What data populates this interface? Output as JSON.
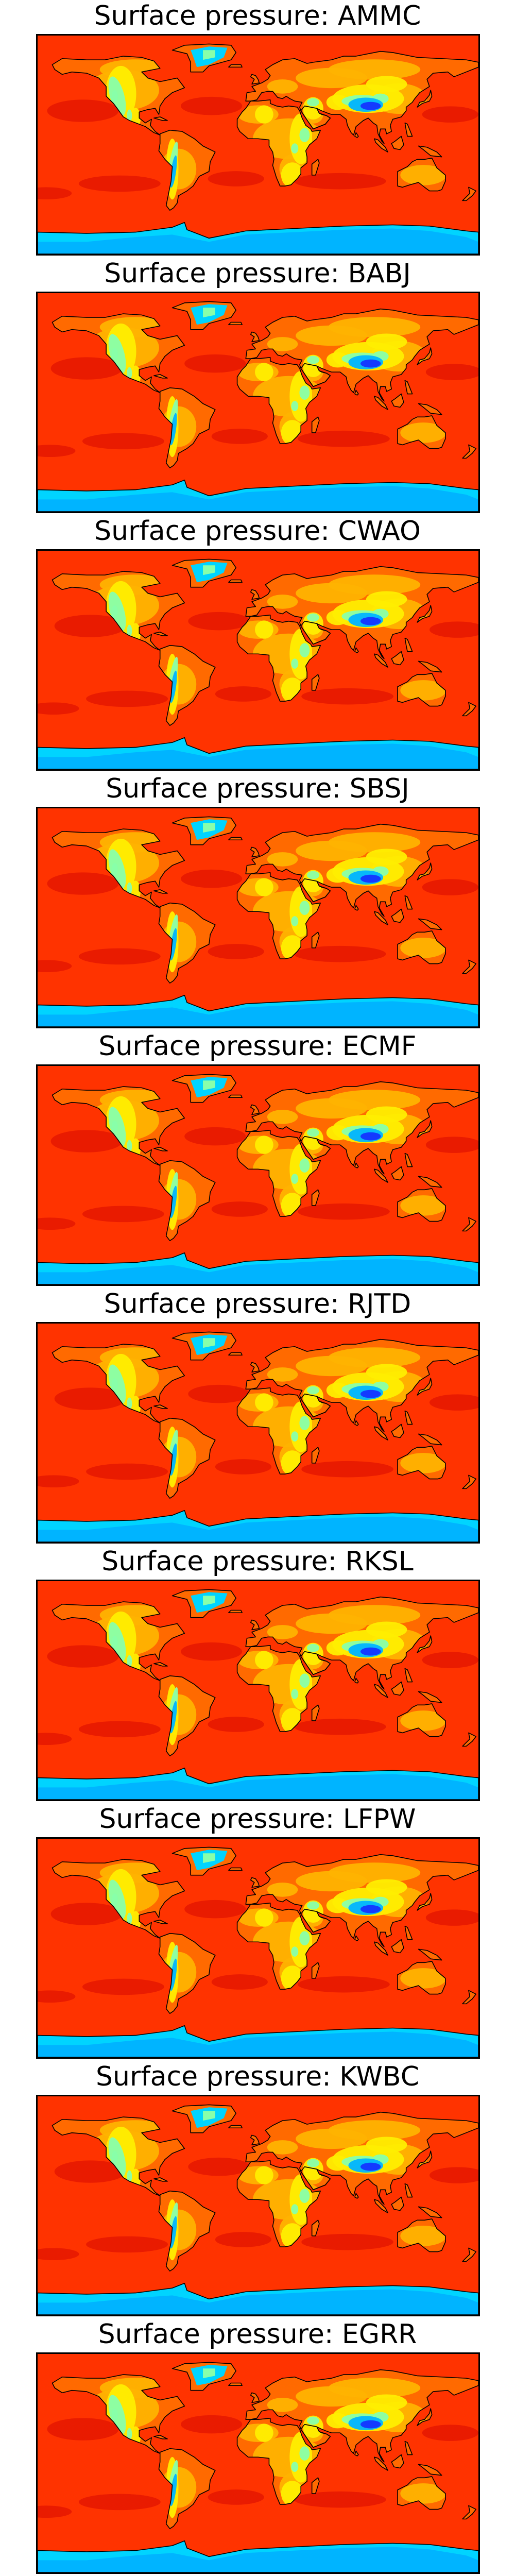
{
  "figure": {
    "panels": [
      {
        "title": "Surface pressure: AMMC",
        "centre": "AMMC"
      },
      {
        "title": "Surface pressure: BABJ",
        "centre": "BABJ"
      },
      {
        "title": "Surface pressure: CWAO",
        "centre": "CWAO"
      },
      {
        "title": "Surface pressure: SBSJ",
        "centre": "SBSJ"
      },
      {
        "title": "Surface pressure: ECMF",
        "centre": "ECMF"
      },
      {
        "title": "Surface pressure: RJTD",
        "centre": "RJTD"
      },
      {
        "title": "Surface pressure: RKSL",
        "centre": "RKSL"
      },
      {
        "title": "Surface pressure: LFPW",
        "centre": "LFPW"
      },
      {
        "title": "Surface pressure: KWBC",
        "centre": "KWBC"
      },
      {
        "title": "Surface pressure: EGRR",
        "centre": "EGRR"
      }
    ],
    "projection": "equirectangular",
    "colormap": "jet",
    "colors": {
      "ocean": "#ff3300",
      "ocean_dark": "#e81a00",
      "land_low": "#ff6a00",
      "land_mid": "#ffb300",
      "land_high": "#ffee00",
      "highland": "#88ffaa",
      "plateau": "#00b4ff",
      "plateau_core": "#1433ff",
      "polar": "#00d4ff",
      "coastline": "#000000"
    }
  }
}
